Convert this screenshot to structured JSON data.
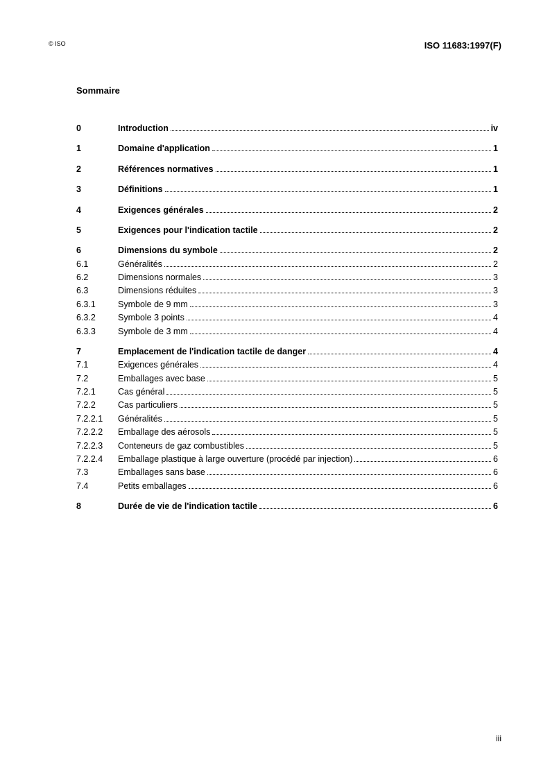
{
  "header": {
    "copyright": "© ISO",
    "doc_id": "ISO 11683:1997(F)"
  },
  "title": "Sommaire",
  "toc": [
    {
      "num": "0",
      "label": "Introduction",
      "page": "iv",
      "bold": true,
      "gap": false
    },
    {
      "num": "1",
      "label": "Domaine d'application",
      "page": "1",
      "bold": true,
      "gap": true
    },
    {
      "num": "2",
      "label": "Références normatives",
      "page": "1",
      "bold": true,
      "gap": true
    },
    {
      "num": "3",
      "label": "Définitions",
      "page": "1",
      "bold": true,
      "gap": true
    },
    {
      "num": "4",
      "label": "Exigences générales",
      "page": "2",
      "bold": true,
      "gap": true
    },
    {
      "num": "5",
      "label": "Exigences pour l'indication tactile",
      "page": "2",
      "bold": true,
      "gap": true
    },
    {
      "num": "6",
      "label": "Dimensions du symbole",
      "page": "2",
      "bold": true,
      "gap": true
    },
    {
      "num": "6.1",
      "label": "Généralités ",
      "page": "2",
      "bold": false,
      "gap": false
    },
    {
      "num": "6.2",
      "label": "Dimensions normales",
      "page": "3",
      "bold": false,
      "gap": false
    },
    {
      "num": "6.3",
      "label": "Dimensions réduites",
      "page": "3",
      "bold": false,
      "gap": false
    },
    {
      "num": "6.3.1",
      "label": "Symbole de 9 mm",
      "page": "3",
      "bold": false,
      "gap": false
    },
    {
      "num": "6.3.2",
      "label": "Symbole 3 points",
      "page": "4",
      "bold": false,
      "gap": false
    },
    {
      "num": "6.3.3",
      "label": "Symbole de 3 mm",
      "page": "4",
      "bold": false,
      "gap": false
    },
    {
      "num": "7",
      "label": "Emplacement de l'indication tactile de danger",
      "page": "4",
      "bold": true,
      "gap": true
    },
    {
      "num": "7.1",
      "label": "Exigences générales",
      "page": "4",
      "bold": false,
      "gap": false
    },
    {
      "num": "7.2",
      "label": "Emballages avec base",
      "page": "5",
      "bold": false,
      "gap": false
    },
    {
      "num": "7.2.1",
      "label": "Cas général",
      "page": "5",
      "bold": false,
      "gap": false
    },
    {
      "num": "7.2.2",
      "label": "Cas particuliers",
      "page": "5",
      "bold": false,
      "gap": false
    },
    {
      "num": "7.2.2.1",
      "label": "Généralités",
      "page": "5",
      "bold": false,
      "gap": false
    },
    {
      "num": "7.2.2.2",
      "label": "Emballage des aérosols",
      "page": "5",
      "bold": false,
      "gap": false
    },
    {
      "num": "7.2.2.3",
      "label": "Conteneurs de gaz combustibles",
      "page": "5",
      "bold": false,
      "gap": false
    },
    {
      "num": "7.2.2.4",
      "label": "Emballage plastique à large ouverture (procédé par injection)",
      "page": "6",
      "bold": false,
      "gap": false
    },
    {
      "num": "7.3",
      "label": "Emballages sans base",
      "page": "6",
      "bold": false,
      "gap": false
    },
    {
      "num": "7.4",
      "label": "Petits emballages",
      "page": "6",
      "bold": false,
      "gap": false
    },
    {
      "num": "8",
      "label": "Durée de vie de l'indication tactile",
      "page": "6",
      "bold": true,
      "gap": true
    }
  ],
  "page_number": "iii"
}
